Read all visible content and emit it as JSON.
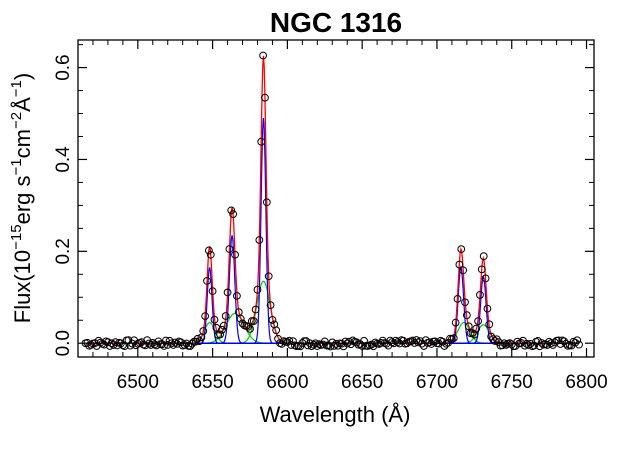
{
  "chart_data": {
    "type": "scatter",
    "title": "NGC 1316",
    "xlabel": "Wavelength (Å)",
    "ylabel_parts": {
      "flux": "Flux(10",
      "exp_flux": "−15",
      "erg": "erg s",
      "exp_s": "−1",
      "cm": "cm",
      "exp_cm": "−2",
      "ang": "Å",
      "exp_ang": "−1",
      "close": ")"
    },
    "xlim": [
      6460,
      6805
    ],
    "ylim": [
      -0.03,
      0.66
    ],
    "xticks": [
      6500,
      6550,
      6600,
      6650,
      6700,
      6750,
      6800
    ],
    "yticks": [
      0.0,
      0.2,
      0.4,
      0.6
    ],
    "ytick_labels": [
      "0.0",
      "0.2",
      "0.4",
      "0.6"
    ],
    "data_range": [
      6465,
      6795
    ],
    "components": {
      "narrow": [
        {
          "center": 6548,
          "amplitude": 0.165,
          "sigma": 1.6
        },
        {
          "center": 6563,
          "amplitude": 0.235,
          "sigma": 1.8
        },
        {
          "center": 6584,
          "amplitude": 0.49,
          "sigma": 1.6
        },
        {
          "center": 6716,
          "amplitude": 0.165,
          "sigma": 1.8
        },
        {
          "center": 6731,
          "amplitude": 0.145,
          "sigma": 1.8
        }
      ],
      "broad": [
        {
          "center": 6548,
          "amplitude": 0.045,
          "sigma": 3.5
        },
        {
          "center": 6565,
          "amplitude": 0.065,
          "sigma": 6.0
        },
        {
          "center": 6584,
          "amplitude": 0.135,
          "sigma": 4.5
        },
        {
          "center": 6718,
          "amplitude": 0.045,
          "sigma": 4.0
        },
        {
          "center": 6731,
          "amplitude": 0.04,
          "sigma": 4.0
        }
      ]
    },
    "colors": {
      "observed": "#000000",
      "total_fit": "#ff0000",
      "narrow": "#0000ff",
      "broad": "#00cc00"
    }
  }
}
